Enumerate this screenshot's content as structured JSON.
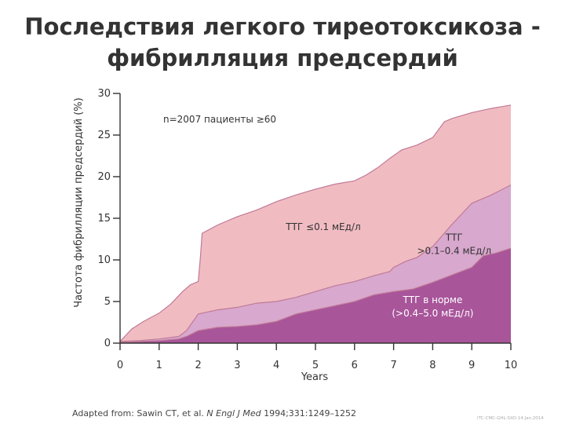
{
  "title_line1": "Последствия легкого тиреотоксикоза -",
  "title_line2": "фибрилляция предсердий",
  "source_prefix": "Adapted from: Sawin CT, et al. ",
  "source_journal": "N Engl J Med",
  "source_suffix": " 1994;331:1249–1252",
  "slide_code": "ITC-CMC-GHL-SXO-14.Jan.2014",
  "chart_data": {
    "type": "area",
    "ylabel": "Частота фибрилляции предсердий (%)",
    "xlabel": "Years",
    "xlim": [
      0,
      10
    ],
    "ylim": [
      0,
      30
    ],
    "x_ticks": [
      "0",
      "1",
      "2",
      "3",
      "4",
      "5",
      "6",
      "7",
      "8",
      "9",
      "10"
    ],
    "y_ticks": [
      "0",
      "5",
      "10",
      "15",
      "20",
      "25",
      "30"
    ],
    "annotation": "n=2007 пациенты ≥60",
    "colors": {
      "ttg_low": "#F0BCC2",
      "ttg_mid": "#D8A8CE",
      "ttg_normal": "#A8559A",
      "outline": "#C07A95"
    },
    "series": [
      {
        "name": "ТТГ ≤0.1 мЕд/л",
        "label_lines": [
          "ТТГ ≤0.1 мЕд/л"
        ],
        "x": [
          0,
          0.3,
          0.6,
          1.0,
          1.3,
          1.6,
          1.7,
          1.8,
          2.0,
          2.05,
          2.1,
          2.5,
          3.0,
          3.5,
          4.0,
          4.5,
          5.0,
          5.5,
          6.0,
          6.3,
          6.6,
          6.9,
          7.2,
          7.6,
          8.0,
          8.3,
          8.5,
          9.0,
          9.5,
          10
        ],
        "values": [
          0.2,
          1.7,
          2.6,
          3.6,
          4.7,
          6.2,
          6.6,
          7.0,
          7.4,
          10,
          13.2,
          14.2,
          15.2,
          16.0,
          17.0,
          17.8,
          18.5,
          19.1,
          19.5,
          20.2,
          21.1,
          22.2,
          23.2,
          23.8,
          24.7,
          26.6,
          27.0,
          27.7,
          28.2,
          28.6
        ]
      },
      {
        "name": "ТТГ >0.1–0.4 мЕд/л",
        "label_lines": [
          "ТТГ",
          ">0.1–0.4 мЕд/л"
        ],
        "x": [
          0,
          0.5,
          1.0,
          1.5,
          1.7,
          2.0,
          2.5,
          3.0,
          3.5,
          4.0,
          4.5,
          5.0,
          5.5,
          6.0,
          6.5,
          6.9,
          7.0,
          7.3,
          7.6,
          8.0,
          8.5,
          9.0,
          9.5,
          10
        ],
        "values": [
          0.2,
          0.3,
          0.5,
          0.8,
          1.5,
          3.5,
          4.0,
          4.3,
          4.8,
          5.0,
          5.5,
          6.2,
          6.9,
          7.4,
          8.1,
          8.6,
          9.1,
          9.8,
          10.3,
          11.6,
          14.3,
          16.8,
          17.8,
          19.0
        ]
      },
      {
        "name": "ТТГ в норме (>0.4–5.0 мЕд/л)",
        "label_lines": [
          "ТТГ в норме",
          "(>0.4–5.0 мЕд/л)"
        ],
        "x": [
          0,
          0.5,
          1.0,
          1.5,
          1.7,
          2.0,
          2.5,
          3.0,
          3.5,
          4.0,
          4.5,
          5.0,
          5.5,
          6.0,
          6.5,
          7.0,
          7.5,
          8.0,
          8.5,
          9.0,
          9.3,
          9.6,
          10
        ],
        "values": [
          0.1,
          0.2,
          0.3,
          0.5,
          0.8,
          1.5,
          1.9,
          2.0,
          2.2,
          2.6,
          3.5,
          4.0,
          4.5,
          5.0,
          5.8,
          6.2,
          6.5,
          7.3,
          8.2,
          9.1,
          10.5,
          10.8,
          11.4
        ]
      }
    ]
  }
}
